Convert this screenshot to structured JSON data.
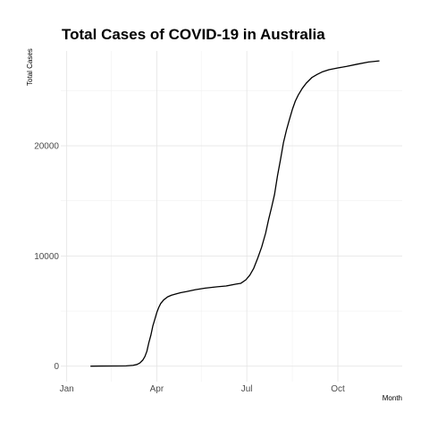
{
  "chart_data": {
    "type": "line",
    "title": "Total Cases of COVID-19 in Australia",
    "xlabel": "Month",
    "ylabel": "Total Cases",
    "x_axis": {
      "type": "date",
      "range": [
        "2019-12-26",
        "2020-12-05"
      ],
      "ticks": [
        {
          "date": "2020-01-01",
          "label": "Jan"
        },
        {
          "date": "2020-04-01",
          "label": "Apr"
        },
        {
          "date": "2020-07-01",
          "label": "Jul"
        },
        {
          "date": "2020-10-01",
          "label": "Oct"
        }
      ],
      "minor_ticks": [
        "2020-02-15",
        "2020-05-16",
        "2020-08-16"
      ]
    },
    "y_axis": {
      "range": [
        -1400,
        28600
      ],
      "ticks": [
        {
          "value": 0,
          "label": "0"
        },
        {
          "value": 10000,
          "label": "10000"
        },
        {
          "value": 20000,
          "label": "20000"
        }
      ],
      "minor_ticks": [
        5000,
        15000,
        25000
      ]
    },
    "grid": true,
    "legend": "none",
    "series": [
      {
        "color": "#000000",
        "points": [
          [
            "2020-01-25",
            4
          ],
          [
            "2020-02-05",
            15
          ],
          [
            "2020-02-20",
            20
          ],
          [
            "2020-03-01",
            27
          ],
          [
            "2020-03-08",
            80
          ],
          [
            "2020-03-12",
            156
          ],
          [
            "2020-03-15",
            300
          ],
          [
            "2020-03-18",
            568
          ],
          [
            "2020-03-20",
            876
          ],
          [
            "2020-03-22",
            1353
          ],
          [
            "2020-03-24",
            2136
          ],
          [
            "2020-03-26",
            2799
          ],
          [
            "2020-03-28",
            3640
          ],
          [
            "2020-03-30",
            4245
          ],
          [
            "2020-04-01",
            4860
          ],
          [
            "2020-04-03",
            5330
          ],
          [
            "2020-04-05",
            5687
          ],
          [
            "2020-04-08",
            6013
          ],
          [
            "2020-04-12",
            6292
          ],
          [
            "2020-04-16",
            6447
          ],
          [
            "2020-04-20",
            6547
          ],
          [
            "2020-04-25",
            6667
          ],
          [
            "2020-05-01",
            6767
          ],
          [
            "2020-05-10",
            6939
          ],
          [
            "2020-05-20",
            7081
          ],
          [
            "2020-06-01",
            7204
          ],
          [
            "2020-06-10",
            7276
          ],
          [
            "2020-06-20",
            7450
          ],
          [
            "2020-06-25",
            7521
          ],
          [
            "2020-06-30",
            7834
          ],
          [
            "2020-07-04",
            8255
          ],
          [
            "2020-07-08",
            8886
          ],
          [
            "2020-07-12",
            9797
          ],
          [
            "2020-07-16",
            10810
          ],
          [
            "2020-07-20",
            12069
          ],
          [
            "2020-07-23",
            13302
          ],
          [
            "2020-07-26",
            14403
          ],
          [
            "2020-07-29",
            15582
          ],
          [
            "2020-08-01",
            17280
          ],
          [
            "2020-08-04",
            18730
          ],
          [
            "2020-08-07",
            20272
          ],
          [
            "2020-08-10",
            21397
          ],
          [
            "2020-08-13",
            22358
          ],
          [
            "2020-08-16",
            23288
          ],
          [
            "2020-08-19",
            24050
          ],
          [
            "2020-08-22",
            24602
          ],
          [
            "2020-08-26",
            25200
          ],
          [
            "2020-08-30",
            25670
          ],
          [
            "2020-09-05",
            26207
          ],
          [
            "2020-09-10",
            26465
          ],
          [
            "2020-09-15",
            26692
          ],
          [
            "2020-09-22",
            26898
          ],
          [
            "2020-10-01",
            27060
          ],
          [
            "2020-10-10",
            27200
          ],
          [
            "2020-10-20",
            27389
          ],
          [
            "2020-11-01",
            27595
          ],
          [
            "2020-11-12",
            27700
          ]
        ]
      }
    ]
  }
}
